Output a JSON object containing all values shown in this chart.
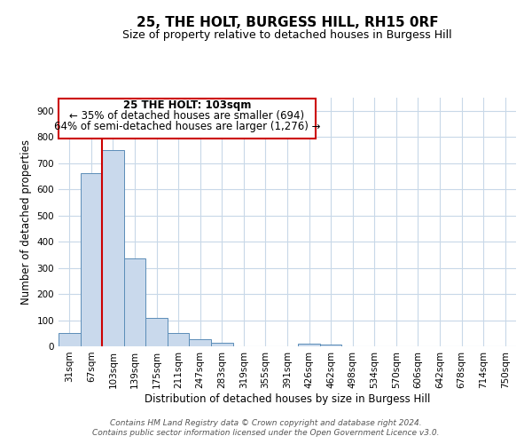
{
  "title": "25, THE HOLT, BURGESS HILL, RH15 0RF",
  "subtitle": "Size of property relative to detached houses in Burgess Hill",
  "xlabel": "Distribution of detached houses by size in Burgess Hill",
  "ylabel": "Number of detached properties",
  "bin_labels": [
    "31sqm",
    "67sqm",
    "103sqm",
    "139sqm",
    "175sqm",
    "211sqm",
    "247sqm",
    "283sqm",
    "319sqm",
    "355sqm",
    "391sqm",
    "426sqm",
    "462sqm",
    "498sqm",
    "534sqm",
    "570sqm",
    "606sqm",
    "642sqm",
    "678sqm",
    "714sqm",
    "750sqm"
  ],
  "bar_values": [
    50,
    662,
    750,
    335,
    107,
    52,
    26,
    14,
    0,
    0,
    0,
    9,
    7,
    0,
    0,
    0,
    0,
    0,
    0,
    0,
    0
  ],
  "bar_color": "#c9d9ec",
  "bar_edgecolor": "#5b8db8",
  "ylim": [
    0,
    950
  ],
  "yticks": [
    0,
    100,
    200,
    300,
    400,
    500,
    600,
    700,
    800,
    900
  ],
  "property_bin_index": 2,
  "vline_color": "#cc0000",
  "annotation_text_line1": "25 THE HOLT: 103sqm",
  "annotation_text_line2": "← 35% of detached houses are smaller (694)",
  "annotation_text_line3": "64% of semi-detached houses are larger (1,276) →",
  "annotation_box_color": "#ffffff",
  "annotation_box_edgecolor": "#cc0000",
  "footer_line1": "Contains HM Land Registry data © Crown copyright and database right 2024.",
  "footer_line2": "Contains public sector information licensed under the Open Government Licence v3.0.",
  "background_color": "#ffffff",
  "grid_color": "#c8d8e8",
  "title_fontsize": 11,
  "subtitle_fontsize": 9,
  "axis_label_fontsize": 8.5,
  "tick_fontsize": 7.5,
  "annotation_fontsize": 8.5,
  "footer_fontsize": 6.5
}
